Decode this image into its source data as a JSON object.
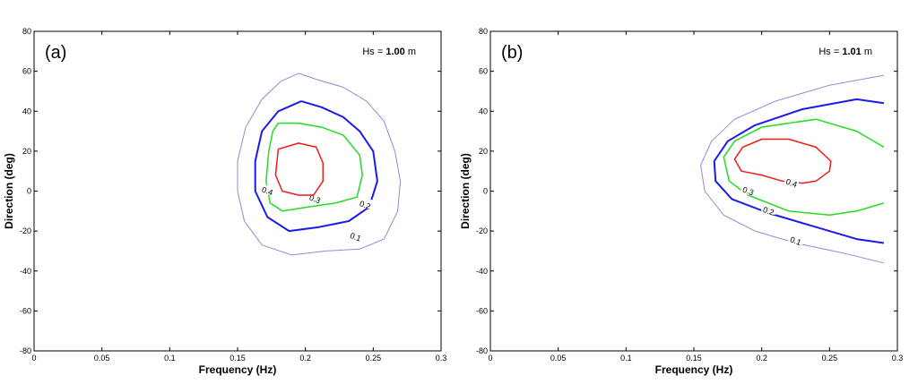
{
  "chart_data": [
    {
      "type": "contour",
      "panel_label": "(a)",
      "annotation": {
        "prefix": "Hs = ",
        "value": "1.00",
        "unit": " m"
      },
      "xlabel": "Frequency (Hz)",
      "ylabel": "Direction (deg)",
      "xlim": [
        0,
        0.3
      ],
      "ylim": [
        -80,
        80
      ],
      "xticks": [
        0,
        0.05,
        0.1,
        0.15,
        0.2,
        0.25,
        0.3
      ],
      "xtick_labels": [
        "0",
        "0.05",
        "0.1",
        "0.15",
        "0.2",
        "0.25",
        "0.3"
      ],
      "yticks": [
        -80,
        -60,
        -40,
        -20,
        0,
        20,
        40,
        60,
        80
      ],
      "ytick_labels": [
        "-80",
        "-60",
        "-40",
        "-20",
        "0",
        "20",
        "40",
        "60",
        "80"
      ],
      "levels": [
        {
          "level": "0.1",
          "color": "#8c8cd8",
          "width": 1,
          "label_pos": [
            0.237,
            -23
          ],
          "points": [
            [
              0.195,
              59
            ],
            [
              0.208,
              56
            ],
            [
              0.228,
              52
            ],
            [
              0.245,
              45
            ],
            [
              0.258,
              35
            ],
            [
              0.266,
              20
            ],
            [
              0.27,
              5
            ],
            [
              0.268,
              -10
            ],
            [
              0.258,
              -24
            ],
            [
              0.24,
              -29
            ],
            [
              0.215,
              -30
            ],
            [
              0.19,
              -32
            ],
            [
              0.168,
              -27
            ],
            [
              0.155,
              -15
            ],
            [
              0.15,
              0
            ],
            [
              0.15,
              15
            ],
            [
              0.156,
              32
            ],
            [
              0.168,
              46
            ],
            [
              0.182,
              55
            ],
            [
              0.195,
              59
            ]
          ]
        },
        {
          "level": "0.2",
          "color": "#1a1aee",
          "width": 2,
          "label_pos": [
            0.244,
            -7
          ],
          "points": [
            [
              0.197,
              45
            ],
            [
              0.212,
              42
            ],
            [
              0.228,
              37
            ],
            [
              0.24,
              30
            ],
            [
              0.25,
              20
            ],
            [
              0.253,
              5
            ],
            [
              0.247,
              -8
            ],
            [
              0.232,
              -15
            ],
            [
              0.21,
              -18
            ],
            [
              0.188,
              -20
            ],
            [
              0.172,
              -13
            ],
            [
              0.163,
              0
            ],
            [
              0.163,
              15
            ],
            [
              0.168,
              30
            ],
            [
              0.18,
              40
            ],
            [
              0.197,
              45
            ]
          ]
        },
        {
          "level": "0.3",
          "color": "#22dd22",
          "width": 1.5,
          "label_pos": [
            0.207,
            -4
          ],
          "points": [
            [
              0.18,
              34
            ],
            [
              0.195,
              34
            ],
            [
              0.212,
              32
            ],
            [
              0.228,
              28
            ],
            [
              0.24,
              18
            ],
            [
              0.242,
              8
            ],
            [
              0.238,
              -3
            ],
            [
              0.222,
              -6
            ],
            [
              0.202,
              -8
            ],
            [
              0.183,
              -10
            ],
            [
              0.174,
              -6
            ],
            [
              0.171,
              5
            ],
            [
              0.173,
              20
            ],
            [
              0.176,
              30
            ],
            [
              0.18,
              34
            ]
          ]
        },
        {
          "level": "0.4",
          "color": "#ee1c1c",
          "width": 1.5,
          "label_pos": [
            0.172,
            0
          ],
          "points": [
            [
              0.18,
              21
            ],
            [
              0.195,
              24
            ],
            [
              0.208,
              22
            ],
            [
              0.213,
              14
            ],
            [
              0.213,
              5
            ],
            [
              0.206,
              -2
            ],
            [
              0.195,
              -2
            ],
            [
              0.183,
              0
            ],
            [
              0.178,
              8
            ],
            [
              0.18,
              21
            ]
          ]
        }
      ]
    },
    {
      "type": "contour",
      "panel_label": "(b)",
      "annotation": {
        "prefix": "Hs = ",
        "value": "1.01",
        "unit": " m"
      },
      "xlabel": "Frequency (Hz)",
      "ylabel": "Direction (deg)",
      "xlim": [
        0,
        0.3
      ],
      "ylim": [
        -80,
        80
      ],
      "xticks": [
        0,
        0.05,
        0.1,
        0.15,
        0.2,
        0.25,
        0.3
      ],
      "xtick_labels": [
        "0",
        "0.05",
        "0.1",
        "0.15",
        "0.2",
        "0.25",
        "0.3"
      ],
      "yticks": [
        -80,
        -60,
        -40,
        -20,
        0,
        20,
        40,
        60,
        80
      ],
      "ytick_labels": [
        "-80",
        "-60",
        "-40",
        "-20",
        "0",
        "20",
        "40",
        "60",
        "80"
      ],
      "levels": [
        {
          "level": "0.1",
          "color": "#8c8cd8",
          "width": 1,
          "label_pos": [
            0.225,
            -25
          ],
          "points": [
            [
              0.29,
              58
            ],
            [
              0.25,
              53
            ],
            [
              0.21,
              45
            ],
            [
              0.18,
              36
            ],
            [
              0.163,
              25
            ],
            [
              0.155,
              13
            ],
            [
              0.158,
              0
            ],
            [
              0.172,
              -12
            ],
            [
              0.195,
              -20
            ],
            [
              0.225,
              -26
            ],
            [
              0.26,
              -31
            ],
            [
              0.29,
              -36
            ]
          ]
        },
        {
          "level": "0.2",
          "color": "#1a1aee",
          "width": 2,
          "label_pos": [
            0.205,
            -10
          ],
          "points": [
            [
              0.29,
              44
            ],
            [
              0.27,
              46
            ],
            [
              0.23,
              41
            ],
            [
              0.195,
              33
            ],
            [
              0.175,
              25
            ],
            [
              0.165,
              15
            ],
            [
              0.166,
              5
            ],
            [
              0.178,
              -4
            ],
            [
              0.205,
              -11
            ],
            [
              0.24,
              -18
            ],
            [
              0.27,
              -24
            ],
            [
              0.29,
              -26
            ]
          ]
        },
        {
          "level": "0.3",
          "color": "#22dd22",
          "width": 1.5,
          "label_pos": [
            0.19,
            0
          ],
          "points": [
            [
              0.29,
              22
            ],
            [
              0.27,
              30
            ],
            [
              0.24,
              36
            ],
            [
              0.2,
              32
            ],
            [
              0.18,
              25
            ],
            [
              0.172,
              17
            ],
            [
              0.176,
              5
            ],
            [
              0.19,
              -2
            ],
            [
              0.22,
              -10
            ],
            [
              0.25,
              -12
            ],
            [
              0.27,
              -10
            ],
            [
              0.29,
              -6
            ]
          ]
        },
        {
          "level": "0.4",
          "color": "#ee1c1c",
          "width": 1.5,
          "label_pos": [
            0.222,
            4
          ],
          "points": [
            [
              0.24,
              5
            ],
            [
              0.25,
              10
            ],
            [
              0.251,
              15
            ],
            [
              0.24,
              22
            ],
            [
              0.22,
              26
            ],
            [
              0.2,
              26
            ],
            [
              0.186,
              22
            ],
            [
              0.18,
              16
            ],
            [
              0.185,
              10
            ],
            [
              0.2,
              8
            ],
            [
              0.215,
              5
            ],
            [
              0.23,
              4
            ],
            [
              0.24,
              5
            ]
          ]
        }
      ]
    }
  ]
}
